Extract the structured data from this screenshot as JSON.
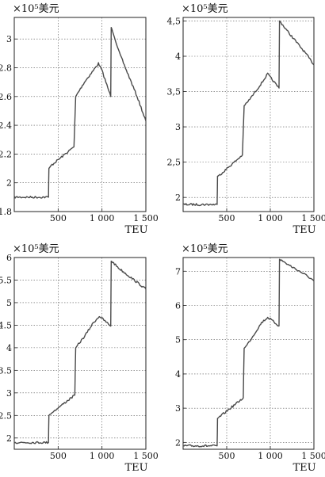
{
  "chart_data": [
    {
      "type": "line",
      "title": "",
      "unit": "×10⁵美元",
      "xlabel": "TEU",
      "xlim": [
        0,
        1500
      ],
      "ylim": [
        1.8,
        3.15
      ],
      "x_ticks": [
        500,
        1000,
        1500
      ],
      "x_tick_labels": [
        "500",
        "1 000",
        "1 500"
      ],
      "y_ticks": [
        1.8,
        2.0,
        2.2,
        2.4,
        2.6,
        2.8,
        3.0
      ],
      "y_tick_labels": [
        "1.8",
        "2",
        "2.2",
        "2.4",
        "2.6",
        "2.8",
        "3"
      ],
      "grid": true,
      "series": [
        {
          "x": [
            0,
            390,
            395,
            420,
            680,
            700,
            720,
            800,
            900,
            960,
            1000,
            1100,
            1105,
            1120,
            1200,
            1300,
            1400,
            1500
          ],
          "y": [
            1.9,
            1.9,
            2.1,
            2.12,
            2.25,
            2.6,
            2.62,
            2.7,
            2.78,
            2.83,
            2.78,
            2.6,
            3.08,
            3.06,
            2.9,
            2.75,
            2.6,
            2.43
          ]
        }
      ]
    },
    {
      "type": "line",
      "title": "",
      "unit": "×10⁵美元",
      "xlabel": "TEU",
      "xlim": [
        0,
        1500
      ],
      "ylim": [
        1.8,
        4.55
      ],
      "x_ticks": [
        500,
        1000,
        1500
      ],
      "x_tick_labels": [
        "500",
        "1 000",
        "1 500"
      ],
      "y_ticks": [
        2.0,
        2.5,
        3.0,
        3.5,
        4.0,
        4.5
      ],
      "y_tick_labels": [
        "2",
        "2,5",
        "3",
        "3,5",
        "4",
        "4,5"
      ],
      "grid": true,
      "series": [
        {
          "x": [
            0,
            390,
            395,
            420,
            680,
            700,
            720,
            800,
            900,
            970,
            1000,
            1100,
            1105,
            1120,
            1200,
            1300,
            1400,
            1500
          ],
          "y": [
            1.9,
            1.9,
            2.3,
            2.32,
            2.6,
            3.3,
            3.32,
            3.45,
            3.62,
            3.75,
            3.7,
            3.55,
            4.5,
            4.48,
            4.35,
            4.2,
            4.05,
            3.88
          ]
        }
      ]
    },
    {
      "type": "line",
      "title": "",
      "unit": "×10⁵美元",
      "xlabel": "TEU",
      "xlim": [
        0,
        1500
      ],
      "ylim": [
        1.75,
        6.0
      ],
      "x_ticks": [
        500,
        1000,
        1500
      ],
      "x_tick_labels": [
        "500",
        "1 000",
        "1 500"
      ],
      "y_ticks": [
        2.0,
        2.5,
        3.0,
        3.5,
        4.0,
        4.5,
        5.0,
        5.5,
        6.0
      ],
      "y_tick_labels": [
        "2",
        "2.5",
        "3",
        "3.5",
        "4",
        "4.5",
        "5",
        "5.5",
        "6"
      ],
      "grid": true,
      "series": [
        {
          "x": [
            0,
            390,
            395,
            420,
            690,
            700,
            720,
            800,
            900,
            970,
            1000,
            1100,
            1105,
            1120,
            1200,
            1300,
            1400,
            1500
          ],
          "y": [
            1.9,
            1.9,
            2.5,
            2.55,
            2.95,
            4.0,
            4.05,
            4.25,
            4.55,
            4.7,
            4.65,
            4.48,
            5.92,
            5.9,
            5.75,
            5.6,
            5.45,
            5.3
          ]
        }
      ]
    },
    {
      "type": "line",
      "title": "",
      "unit": "×10⁵美元",
      "xlabel": "TEU",
      "xlim": [
        0,
        1500
      ],
      "ylim": [
        1.8,
        7.4
      ],
      "x_ticks": [
        500,
        1000,
        1500
      ],
      "x_tick_labels": [
        "500",
        "1 000",
        "1 500"
      ],
      "y_ticks": [
        2,
        3,
        4,
        5,
        6,
        7
      ],
      "y_tick_labels": [
        "2",
        "3",
        "4",
        "5",
        "6",
        "7"
      ],
      "grid": true,
      "series": [
        {
          "x": [
            0,
            390,
            395,
            420,
            690,
            700,
            720,
            800,
            900,
            970,
            1000,
            1100,
            1105,
            1120,
            1200,
            1300,
            1400,
            1500
          ],
          "y": [
            1.9,
            1.9,
            2.7,
            2.75,
            3.3,
            4.75,
            4.8,
            5.1,
            5.5,
            5.65,
            5.6,
            5.4,
            7.35,
            7.33,
            7.2,
            7.05,
            6.9,
            6.72
          ]
        }
      ]
    }
  ]
}
